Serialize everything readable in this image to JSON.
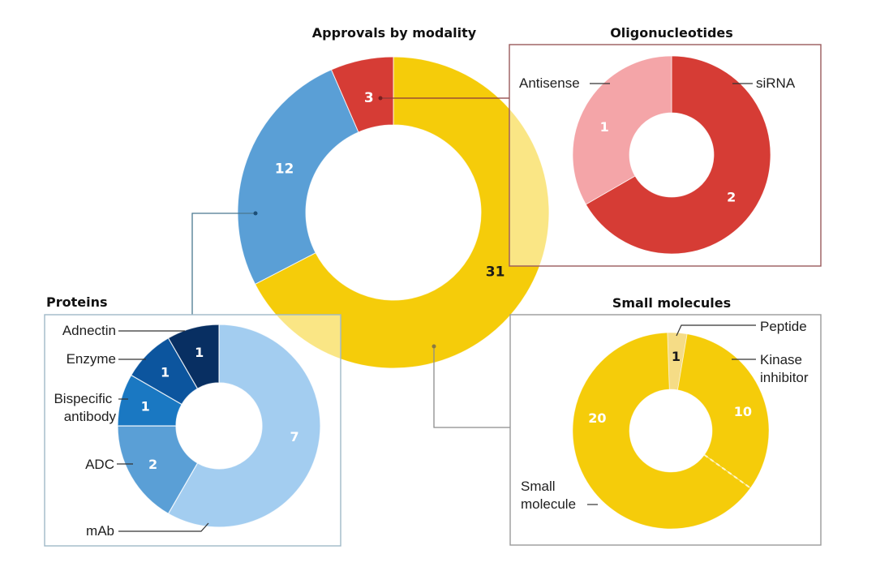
{
  "chart_data": [
    {
      "id": "main",
      "type": "pie",
      "subtype": "donut",
      "title": "Approvals by modality",
      "categories": [
        "Small molecules",
        "Proteins",
        "Oligonucleotides"
      ],
      "values": [
        31,
        12,
        3
      ],
      "labels": [
        "31",
        "12",
        "3"
      ],
      "colors": [
        "#f5cc0a",
        "#5a9fd6",
        "#d63c35"
      ],
      "label_colors": [
        "#1a1a1a",
        "#ffffff",
        "#ffffff"
      ]
    },
    {
      "id": "oligonucleotides",
      "type": "pie",
      "subtype": "donut",
      "title": "Oligonucleotides",
      "categories": [
        "siRNA",
        "Antisense"
      ],
      "values": [
        2,
        1
      ],
      "labels": [
        "2",
        "1"
      ],
      "colors": [
        "#d63c35",
        "#f4a5a8"
      ],
      "label_colors": [
        "#ffffff",
        "#ffffff"
      ]
    },
    {
      "id": "proteins",
      "type": "pie",
      "subtype": "donut",
      "title": "Proteins",
      "categories": [
        "mAb",
        "ADC",
        "Bispecific antibody",
        "Enzyme",
        "Adnectin"
      ],
      "values": [
        7,
        2,
        1,
        1,
        1
      ],
      "labels": [
        "7",
        "2",
        "1",
        "1",
        "1"
      ],
      "colors": [
        "#a3cdf0",
        "#5a9fd6",
        "#1a78c2",
        "#0c559e",
        "#082f62"
      ],
      "label_colors": [
        "#ffffff",
        "#ffffff",
        "#ffffff",
        "#ffffff",
        "#ffffff"
      ]
    },
    {
      "id": "small-molecules",
      "type": "pie",
      "subtype": "donut",
      "title": "Small molecules",
      "categories": [
        "Peptide",
        "Kinase inhibitor",
        "Small molecule"
      ],
      "values": [
        1,
        10,
        20
      ],
      "labels": [
        "1",
        "10",
        "20"
      ],
      "colors": [
        "#f5dc86",
        "#f5cc0a",
        "#f5cc0a"
      ],
      "label_colors": [
        "#1a1a1a",
        "#ffffff",
        "#ffffff"
      ]
    }
  ],
  "callouts": {
    "oligonucleotides": [
      "Antisense",
      "siRNA"
    ],
    "proteins": [
      "Adnectin",
      "Enzyme",
      "Bispecific antibody",
      "ADC",
      "mAb"
    ],
    "small_molecules": [
      "Peptide",
      "Kinase inhibitor",
      "Small molecule"
    ]
  }
}
